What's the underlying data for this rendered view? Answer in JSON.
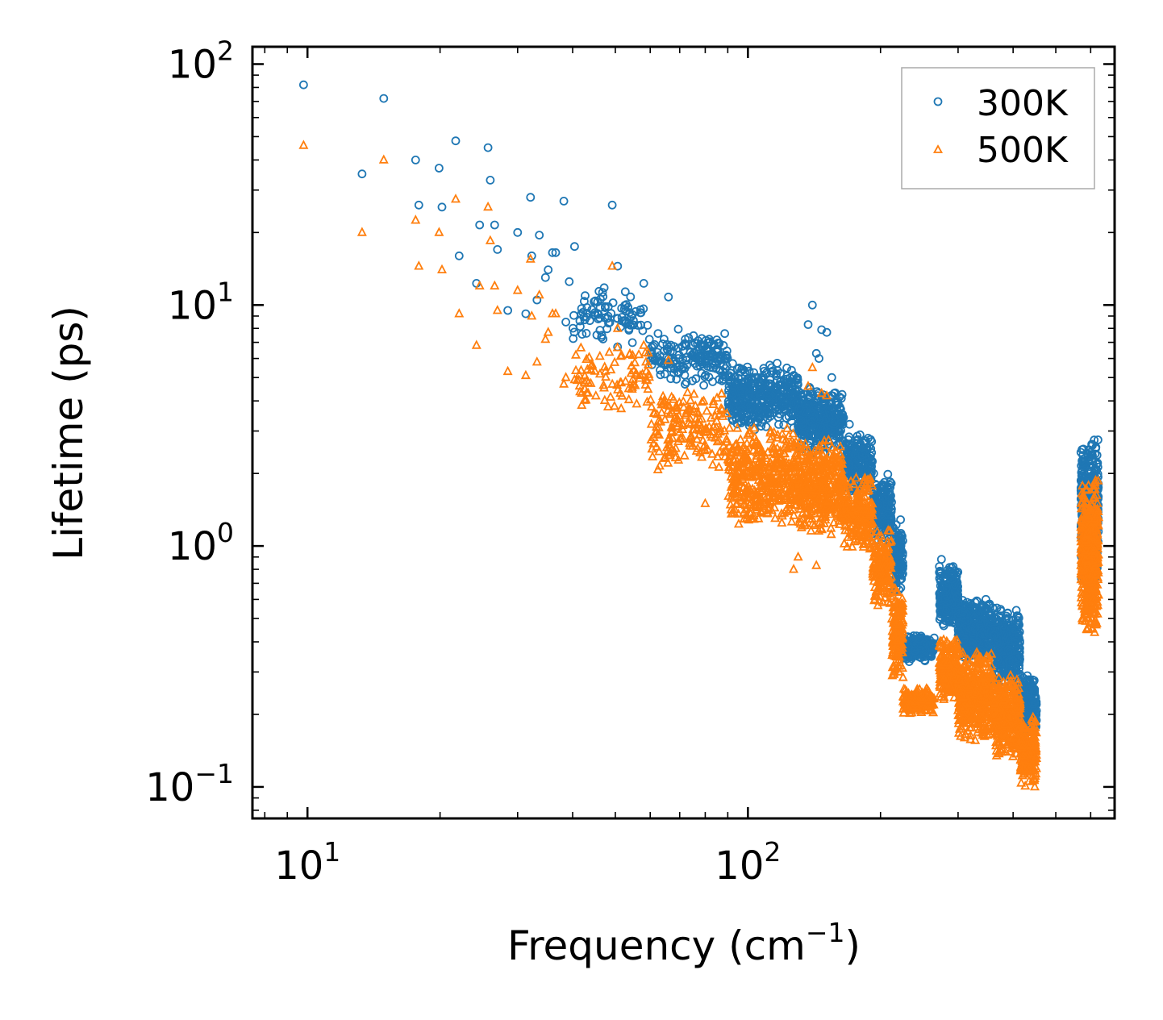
{
  "chart_data": {
    "type": "scatter",
    "title": "",
    "xlabel_main": "Frequency (cm",
    "xlabel_sup": "−1",
    "xlabel_end": ")",
    "ylabel": "Lifetime (ps)",
    "xscale": "log",
    "yscale": "log",
    "xlim": [
      7.5,
      680
    ],
    "ylim": [
      0.074,
      118
    ],
    "xticks": [
      {
        "value": 10,
        "base": "10",
        "exp": "1"
      },
      {
        "value": 100,
        "base": "10",
        "exp": "2"
      }
    ],
    "yticks": [
      {
        "value": 0.1,
        "base": "10",
        "exp": "−1"
      },
      {
        "value": 1,
        "base": "10",
        "exp": "0"
      },
      {
        "value": 10,
        "base": "10",
        "exp": "1"
      },
      {
        "value": 100,
        "base": "10",
        "exp": "2"
      }
    ],
    "legend_position": "top-right",
    "series": [
      {
        "name": "300K",
        "marker": "circle",
        "color": "#1f77b4",
        "points": [
          [
            9.8,
            82
          ],
          [
            13.3,
            35
          ],
          [
            14.9,
            72
          ],
          [
            17.6,
            40
          ],
          [
            17.9,
            26
          ],
          [
            19.9,
            37
          ],
          [
            20.2,
            25.5
          ],
          [
            21.7,
            48
          ],
          [
            22.1,
            16
          ],
          [
            24.2,
            12.3
          ],
          [
            24.6,
            21.5
          ],
          [
            25.7,
            45
          ],
          [
            26.0,
            33
          ],
          [
            26.6,
            21.5
          ],
          [
            27.0,
            17
          ],
          [
            28.5,
            9.5
          ],
          [
            30.0,
            20
          ],
          [
            31.3,
            9.2
          ],
          [
            32.1,
            28
          ],
          [
            32.3,
            16
          ],
          [
            33.2,
            10.5
          ],
          [
            33.6,
            19.5
          ],
          [
            34.7,
            13
          ],
          [
            35.2,
            14
          ],
          [
            36.0,
            16.5
          ],
          [
            36.6,
            16.5
          ],
          [
            38.2,
            27
          ],
          [
            38.6,
            8.5
          ],
          [
            39.3,
            12.5
          ],
          [
            40.4,
            17.5
          ],
          [
            49.2,
            26
          ],
          [
            50.6,
            14.5
          ],
          [
            58.0,
            12.3
          ],
          [
            66.0,
            10.8
          ],
          [
            140.1,
            10.0
          ],
          [
            137.0,
            8.3
          ],
          [
            147.0,
            7.9
          ],
          [
            151.0,
            7.7
          ],
          [
            143.0,
            6.3
          ],
          [
            145.0,
            6.0
          ],
          [
            155.0,
            5.0
          ],
          [
            157.0,
            4.3
          ],
          [
            163.0,
            4.1
          ],
          [
            170.0,
            3.2
          ],
          [
            193.0,
            2.0
          ],
          [
            202.0,
            1.8
          ],
          [
            275.0,
            0.88
          ],
          [
            400.0,
            0.38
          ]
        ],
        "bands": [
          {
            "x": [
              40,
              60
            ],
            "ylow": 6.5,
            "yhigh": 12,
            "n": 90
          },
          {
            "x": [
              60,
              90
            ],
            "ylow": 4.5,
            "yhigh": 8,
            "n": 180
          },
          {
            "x": [
              90,
              130
            ],
            "ylow": 3.0,
            "yhigh": 5.8,
            "n": 420
          },
          {
            "x": [
              130,
              165
            ],
            "ylow": 2.4,
            "yhigh": 4.6,
            "n": 360
          },
          {
            "x": [
              165,
              192
            ],
            "ylow": 1.6,
            "yhigh": 3.0,
            "n": 200
          },
          {
            "x": [
              192,
              212
            ],
            "ylow": 1.0,
            "yhigh": 2.0,
            "n": 160
          },
          {
            "x": [
              212,
              225
            ],
            "ylow": 0.6,
            "yhigh": 1.3,
            "n": 130
          },
          {
            "x": [
              225,
              265
            ],
            "ylow": 0.33,
            "yhigh": 0.43,
            "n": 220
          },
          {
            "x": [
              272,
              300
            ],
            "ylow": 0.45,
            "yhigh": 0.85,
            "n": 240
          },
          {
            "x": [
              300,
              360
            ],
            "ylow": 0.33,
            "yhigh": 0.62,
            "n": 420
          },
          {
            "x": [
              360,
              415
            ],
            "ylow": 0.25,
            "yhigh": 0.56,
            "n": 320
          },
          {
            "x": [
              415,
              452
            ],
            "ylow": 0.16,
            "yhigh": 0.3,
            "n": 220
          },
          {
            "x": [
              570,
              625
            ],
            "ylow": 0.7,
            "yhigh": 2.8,
            "n": 520
          }
        ]
      },
      {
        "name": "500K",
        "marker": "triangle",
        "color": "#ff7f0e",
        "points": [
          [
            9.8,
            46
          ],
          [
            13.3,
            20
          ],
          [
            14.9,
            40
          ],
          [
            17.6,
            22.5
          ],
          [
            17.9,
            14.5
          ],
          [
            19.9,
            20
          ],
          [
            20.2,
            14
          ],
          [
            21.7,
            27.5
          ],
          [
            22.1,
            9.2
          ],
          [
            24.2,
            6.8
          ],
          [
            24.6,
            12
          ],
          [
            25.7,
            25.5
          ],
          [
            26.0,
            18.5
          ],
          [
            26.6,
            12
          ],
          [
            27.0,
            9.5
          ],
          [
            28.5,
            5.3
          ],
          [
            30.0,
            11.5
          ],
          [
            31.3,
            5.1
          ],
          [
            32.1,
            15.5
          ],
          [
            32.3,
            9
          ],
          [
            33.2,
            5.8
          ],
          [
            33.6,
            11
          ],
          [
            34.7,
            7.2
          ],
          [
            35.2,
            7.7
          ],
          [
            36.0,
            9.2
          ],
          [
            36.6,
            9.2
          ],
          [
            38.2,
            4.7
          ],
          [
            38.6,
            5.0
          ],
          [
            40.4,
            4.9
          ],
          [
            49.2,
            14.5
          ],
          [
            50.6,
            8.0
          ],
          [
            58.0,
            6.8
          ],
          [
            66.0,
            5.9
          ],
          [
            140.1,
            5.5
          ],
          [
            137.0,
            4.6
          ],
          [
            147.0,
            4.3
          ],
          [
            151.0,
            4.2
          ],
          [
            80.0,
            1.5
          ],
          [
            130.0,
            0.9
          ],
          [
            127.0,
            0.8
          ],
          [
            143.0,
            0.83
          ],
          [
            275.0,
            0.4
          ],
          [
            400.0,
            0.18
          ],
          [
            448.0,
            0.1
          ]
        ],
        "bands": [
          {
            "x": [
              40,
              60
            ],
            "ylow": 3.5,
            "yhigh": 7.0,
            "n": 90
          },
          {
            "x": [
              60,
              90
            ],
            "ylow": 2.0,
            "yhigh": 4.6,
            "n": 180
          },
          {
            "x": [
              90,
              130
            ],
            "ylow": 1.2,
            "yhigh": 3.2,
            "n": 440
          },
          {
            "x": [
              130,
              165
            ],
            "ylow": 1.1,
            "yhigh": 2.9,
            "n": 380
          },
          {
            "x": [
              165,
              192
            ],
            "ylow": 0.9,
            "yhigh": 2.0,
            "n": 220
          },
          {
            "x": [
              192,
              212
            ],
            "ylow": 0.55,
            "yhigh": 1.2,
            "n": 160
          },
          {
            "x": [
              212,
              225
            ],
            "ylow": 0.27,
            "yhigh": 0.75,
            "n": 150
          },
          {
            "x": [
              225,
              265
            ],
            "ylow": 0.2,
            "yhigh": 0.26,
            "n": 220
          },
          {
            "x": [
              272,
              300
            ],
            "ylow": 0.22,
            "yhigh": 0.42,
            "n": 240
          },
          {
            "x": [
              300,
              360
            ],
            "ylow": 0.15,
            "yhigh": 0.38,
            "n": 420
          },
          {
            "x": [
              360,
              415
            ],
            "ylow": 0.13,
            "yhigh": 0.3,
            "n": 320
          },
          {
            "x": [
              415,
              452
            ],
            "ylow": 0.1,
            "yhigh": 0.2,
            "n": 220
          },
          {
            "x": [
              570,
              625
            ],
            "ylow": 0.42,
            "yhigh": 1.9,
            "n": 520
          }
        ]
      }
    ]
  }
}
